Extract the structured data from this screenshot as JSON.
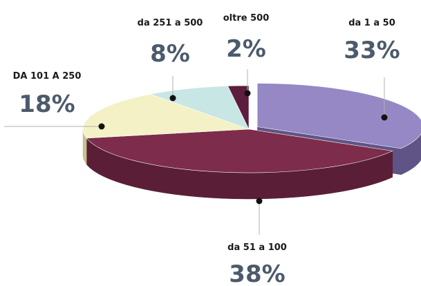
{
  "chart_data": {
    "type": "pie",
    "title": "",
    "categories": [
      "da 1 a 50",
      "da 51 a 100",
      "DA 101 A 250",
      "da 251 a 500",
      "oltre 500"
    ],
    "values": [
      33,
      38,
      18,
      8,
      2
    ],
    "value_labels": [
      "33%",
      "38%",
      "18%",
      "8%",
      "2%"
    ],
    "legend": "none",
    "style": "3d-exploded-ellipse"
  },
  "colors": {
    "slices": [
      "#9688c4",
      "#7d2c4c",
      "#f4f1c6",
      "#c8e6e4",
      "#5c1e3c"
    ],
    "slice_sides": [
      "#5f5485",
      "#5a1f37",
      "#c5c290",
      "#93b7b4",
      "#3e1428"
    ],
    "percent_text": "#4d5a6b",
    "leader_line": "#b0b0b0"
  }
}
